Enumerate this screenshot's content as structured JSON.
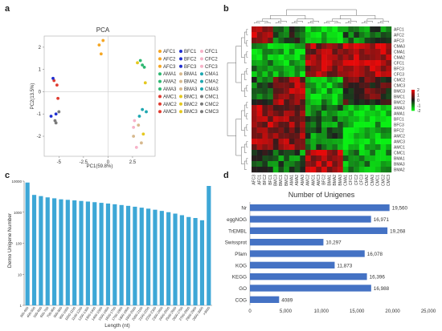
{
  "panels": {
    "a": "a",
    "b": "b",
    "c": "c",
    "d": "d"
  },
  "chart_data": [
    {
      "type": "scatter",
      "title": "PCA",
      "xlabel": "PC1(59.8%)",
      "ylabel": "PC2(13.5%)",
      "xlim": [
        -6.5,
        4.8
      ],
      "ylim": [
        -2.9,
        2.5
      ],
      "xticks": [
        -5,
        -2.5,
        0,
        2.5
      ],
      "xtick_labels": [
        "-5",
        "-2.5",
        "0",
        "2.5"
      ],
      "yticks": [
        -2,
        -1,
        0,
        1,
        2
      ],
      "ytick_labels": [
        "-2",
        "-1",
        "0",
        "1",
        "2"
      ],
      "grid": false,
      "legend_position": "right",
      "series": [
        {
          "name": "AFC1",
          "color": "#f5a623",
          "x": [
            -0.5
          ],
          "y": [
            2.3
          ]
        },
        {
          "name": "AFC2",
          "color": "#f5a623",
          "x": [
            -0.9
          ],
          "y": [
            2.1
          ]
        },
        {
          "name": "AFC3",
          "color": "#f5a623",
          "x": [
            -0.7
          ],
          "y": [
            1.7
          ]
        },
        {
          "name": "AMA1",
          "color": "#2eb872",
          "x": [
            3.5
          ],
          "y": [
            1.2
          ]
        },
        {
          "name": "AMA2",
          "color": "#2eb872",
          "x": [
            3.7
          ],
          "y": [
            1.1
          ]
        },
        {
          "name": "AMA3",
          "color": "#2eb872",
          "x": [
            3.3
          ],
          "y": [
            1.4
          ]
        },
        {
          "name": "AMC1",
          "color": "#e03c31",
          "x": [
            -5.2
          ],
          "y": [
            0.3
          ]
        },
        {
          "name": "AMC2",
          "color": "#e03c31",
          "x": [
            -5.5
          ],
          "y": [
            0.5
          ]
        },
        {
          "name": "AMC3",
          "color": "#e03c31",
          "x": [
            -5.1
          ],
          "y": [
            -0.3
          ]
        },
        {
          "name": "BFC1",
          "color": "#1f2fd0",
          "x": [
            -5.8
          ],
          "y": [
            -1.1
          ]
        },
        {
          "name": "BFC2",
          "color": "#1f2fd0",
          "x": [
            -5.3
          ],
          "y": [
            -1.0
          ]
        },
        {
          "name": "BFC3",
          "color": "#1f2fd0",
          "x": [
            -5.6
          ],
          "y": [
            0.6
          ]
        },
        {
          "name": "BMA1",
          "color": "#d7b98e",
          "x": [
            3.1
          ],
          "y": [
            -1.5
          ]
        },
        {
          "name": "BMA2",
          "color": "#d7b98e",
          "x": [
            3.4
          ],
          "y": [
            -2.3
          ]
        },
        {
          "name": "BMA3",
          "color": "#d7b98e",
          "x": [
            2.6
          ],
          "y": [
            -2.0
          ]
        },
        {
          "name": "BMC1",
          "color": "#e5c81e",
          "x": [
            3.0
          ],
          "y": [
            1.3
          ]
        },
        {
          "name": "BMC2",
          "color": "#e5c81e",
          "x": [
            3.6
          ],
          "y": [
            -1.9
          ]
        },
        {
          "name": "BMC3",
          "color": "#e5c81e",
          "x": [
            3.8
          ],
          "y": [
            0.4
          ]
        },
        {
          "name": "CFC1",
          "color": "#f7b2c8",
          "x": [
            2.6
          ],
          "y": [
            -1.6
          ]
        },
        {
          "name": "CFC2",
          "color": "#f7b2c8",
          "x": [
            2.9
          ],
          "y": [
            -2.5
          ]
        },
        {
          "name": "CFC3",
          "color": "#f7b2c8",
          "x": [
            2.7
          ],
          "y": [
            -1.3
          ]
        },
        {
          "name": "CMA1",
          "color": "#1ea7b0",
          "x": [
            3.2
          ],
          "y": [
            -1.1
          ]
        },
        {
          "name": "CMA2",
          "color": "#1ea7b0",
          "x": [
            3.5
          ],
          "y": [
            -0.8
          ]
        },
        {
          "name": "CMA3",
          "color": "#1ea7b0",
          "x": [
            3.9
          ],
          "y": [
            -0.9
          ]
        },
        {
          "name": "CMC1",
          "color": "#7a7a7a",
          "x": [
            -5.4
          ],
          "y": [
            -1.3
          ]
        },
        {
          "name": "CMC2",
          "color": "#7a7a7a",
          "x": [
            -5.0
          ],
          "y": [
            -0.9
          ]
        },
        {
          "name": "CMC3",
          "color": "#7a7a7a",
          "x": [
            -5.3
          ],
          "y": [
            -1.4
          ]
        }
      ]
    },
    {
      "type": "heatmap",
      "legend_ticks": [
        "2",
        "1",
        "0",
        "-1",
        "-2"
      ],
      "vmin": -2,
      "vmax": 2,
      "rows": [
        "AFC1",
        "AFC2",
        "AFC3",
        "CMA3",
        "CMA1",
        "CMA2",
        "CFC1",
        "BFC3",
        "CFC3",
        "CMC2",
        "CMC3",
        "BMC3",
        "BMC1",
        "BMC2",
        "AMA3",
        "AMA1",
        "BFC1",
        "BFC3",
        "BFC2",
        "AMC2",
        "AMC3",
        "AMC1",
        "CMC1",
        "BMA1",
        "BMA3",
        "BMA2"
      ],
      "columns": [
        "AFC3",
        "AFC1",
        "BFC2",
        "BFC1",
        "BMC3",
        "BMC1",
        "BMC2",
        "AMA1",
        "AMA2",
        "AMA3",
        "AMC2",
        "AMC1",
        "AMC3",
        "BFC2",
        "BMA1",
        "BMA2",
        "BMA3",
        "CMA1",
        "CFC1",
        "CFC2",
        "CFC3",
        "CMA2",
        "CMA3",
        "CMC1",
        "CMC2",
        "CMC3"
      ]
    },
    {
      "type": "bar",
      "ylabel": "Demo Unigene Number",
      "xlabel": "Length (nt)",
      "yscale": "log",
      "ylim": [
        1,
        10000
      ],
      "yticks": [
        1,
        10,
        100,
        1000,
        10000
      ],
      "ytick_labels": [
        "1",
        "10",
        "100",
        "1000",
        "10000"
      ],
      "color": "#3da7d6",
      "categories": [
        "300-400",
        "400-500",
        "500-600",
        "600-700",
        "700-800",
        "800-900",
        "900-1000",
        "1000-1100",
        "1100-1200",
        "1200-1300",
        "1300-1400",
        "1400-1500",
        "1500-1600",
        "1600-1700",
        "1700-1800",
        "1800-1900",
        "1900-2000",
        "2000-2100",
        "2100-2200",
        "2200-2300",
        "2300-2400",
        "2400-2500",
        "2500-2600",
        "2600-2700",
        "2700-2800",
        "2800-2900",
        "2900-3000",
        ">3000"
      ],
      "values": [
        9000,
        3600,
        3300,
        3000,
        2800,
        2600,
        2500,
        2400,
        2300,
        2200,
        2100,
        2000,
        1900,
        1800,
        1700,
        1600,
        1500,
        1400,
        1300,
        1200,
        1100,
        1000,
        900,
        800,
        700,
        650,
        550,
        7000
      ]
    },
    {
      "type": "bar",
      "orientation": "horizontal",
      "title": "Number of Unigenes",
      "color": "#4472c4",
      "xlim": [
        0,
        25000
      ],
      "xticks": [
        0,
        5000,
        10000,
        15000,
        20000,
        25000
      ],
      "xtick_labels": [
        "0",
        "5,000",
        "10,000",
        "15,000",
        "20,000",
        "25,000"
      ],
      "categories": [
        "Nr",
        "eggNOG",
        "TrEMBL",
        "Swissprot",
        "Pfam",
        "KOG",
        "KEGG",
        "GO",
        "COG"
      ],
      "values": [
        19560,
        16971,
        19268,
        10297,
        16078,
        11873,
        16396,
        16988,
        4089
      ],
      "data_labels": [
        "19,560",
        "16,971",
        "19,268",
        "10,297",
        "16,078",
        "11,873",
        "16,396",
        "16,988",
        "4089"
      ]
    }
  ]
}
